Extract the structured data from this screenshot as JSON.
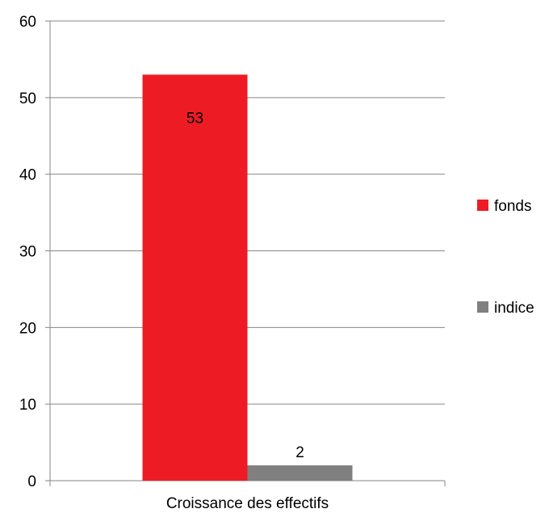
{
  "chart_data": {
    "type": "bar",
    "categories": [
      "Croissance des effectifs"
    ],
    "series": [
      {
        "name": "fonds",
        "values": [
          53
        ],
        "color": "#ED1C24"
      },
      {
        "name": "indice",
        "values": [
          2
        ],
        "color": "#808080"
      }
    ],
    "data_labels": [
      "53",
      "2"
    ],
    "ylim": [
      0,
      60
    ],
    "yticks": [
      0,
      10,
      20,
      30,
      40,
      50,
      60
    ],
    "grid": true,
    "legend": "right"
  }
}
